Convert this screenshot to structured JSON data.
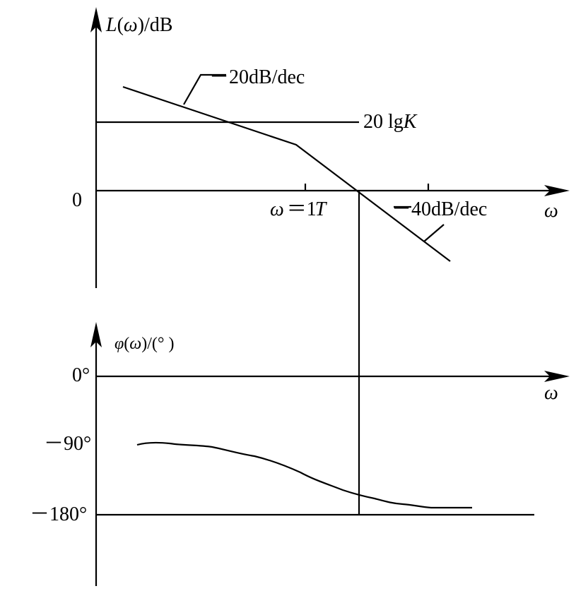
{
  "magnitude_plot": {
    "y_axis_label_main": "L(",
    "y_axis_label_var": "ω",
    "y_axis_label_unit": ")/dB",
    "x_axis_label": "ω",
    "zero_label": "0",
    "gain_line_prefix": "20 lg",
    "gain_line_var": "K",
    "slope_low_label": "－20dB/dec",
    "slope_high_label": "－40dB/dec",
    "corner_label_var": "ω",
    "corner_label_eq": "＝1",
    "corner_label_T": "T"
  },
  "phase_plot": {
    "y_axis_label_var": "φ",
    "y_axis_label_mid": "(",
    "y_axis_label_var2": "ω",
    "y_axis_label_unit": ")/(°  )",
    "x_axis_label": "ω",
    "tick_0": "0°",
    "tick_minus_90": "－90°",
    "tick_minus_180": "－180°"
  },
  "colors": {
    "line": "#000000",
    "background": "#ffffff"
  }
}
